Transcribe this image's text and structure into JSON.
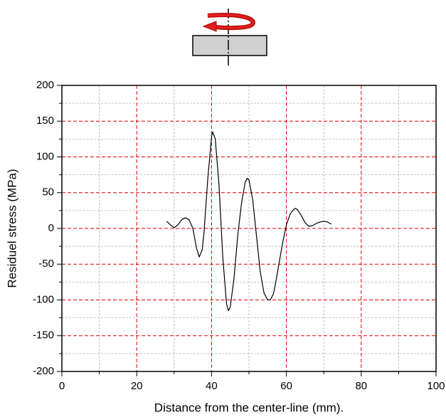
{
  "chart_data": {
    "type": "line",
    "x_label": "Distance from the center-line (mm).",
    "y_label": "Residuel stress (MPa)",
    "xlim": [
      0,
      100
    ],
    "xticks": [
      0,
      20,
      40,
      60,
      80,
      100
    ],
    "ylim": [
      -200,
      200
    ],
    "yticks": [
      -200,
      -150,
      -100,
      -50,
      0,
      50,
      100,
      150,
      200
    ],
    "minor_xticks": [
      10,
      30,
      50,
      70,
      90
    ],
    "minor_yticks": [
      -175,
      -125,
      -75,
      -25,
      25,
      75,
      125,
      175
    ],
    "grid": true,
    "series": [
      {
        "color": "#000000",
        "x": [
          28,
          29,
          30,
          31,
          32,
          33,
          34,
          35,
          36,
          36.7,
          37.5,
          38,
          39,
          40,
          40.3,
          41,
          42,
          43,
          44,
          44.5,
          45,
          46,
          47,
          48,
          49,
          49.5,
          50,
          51,
          52,
          53,
          54,
          55,
          55.7,
          56.5,
          57,
          58,
          59,
          60,
          61,
          62,
          62.5,
          63,
          64,
          65,
          66,
          67,
          68,
          69,
          70,
          71,
          72
        ],
        "values": [
          10,
          5,
          1,
          5,
          12,
          15,
          12,
          0,
          -28,
          -40,
          -30,
          -5,
          70,
          128,
          135,
          125,
          60,
          -40,
          -105,
          -115,
          -110,
          -70,
          -10,
          35,
          65,
          70,
          68,
          40,
          -10,
          -60,
          -90,
          -100,
          -100,
          -92,
          -80,
          -50,
          -20,
          5,
          20,
          27,
          28,
          26,
          18,
          8,
          3,
          4,
          7,
          9,
          10,
          9,
          6
        ]
      }
    ]
  }
}
